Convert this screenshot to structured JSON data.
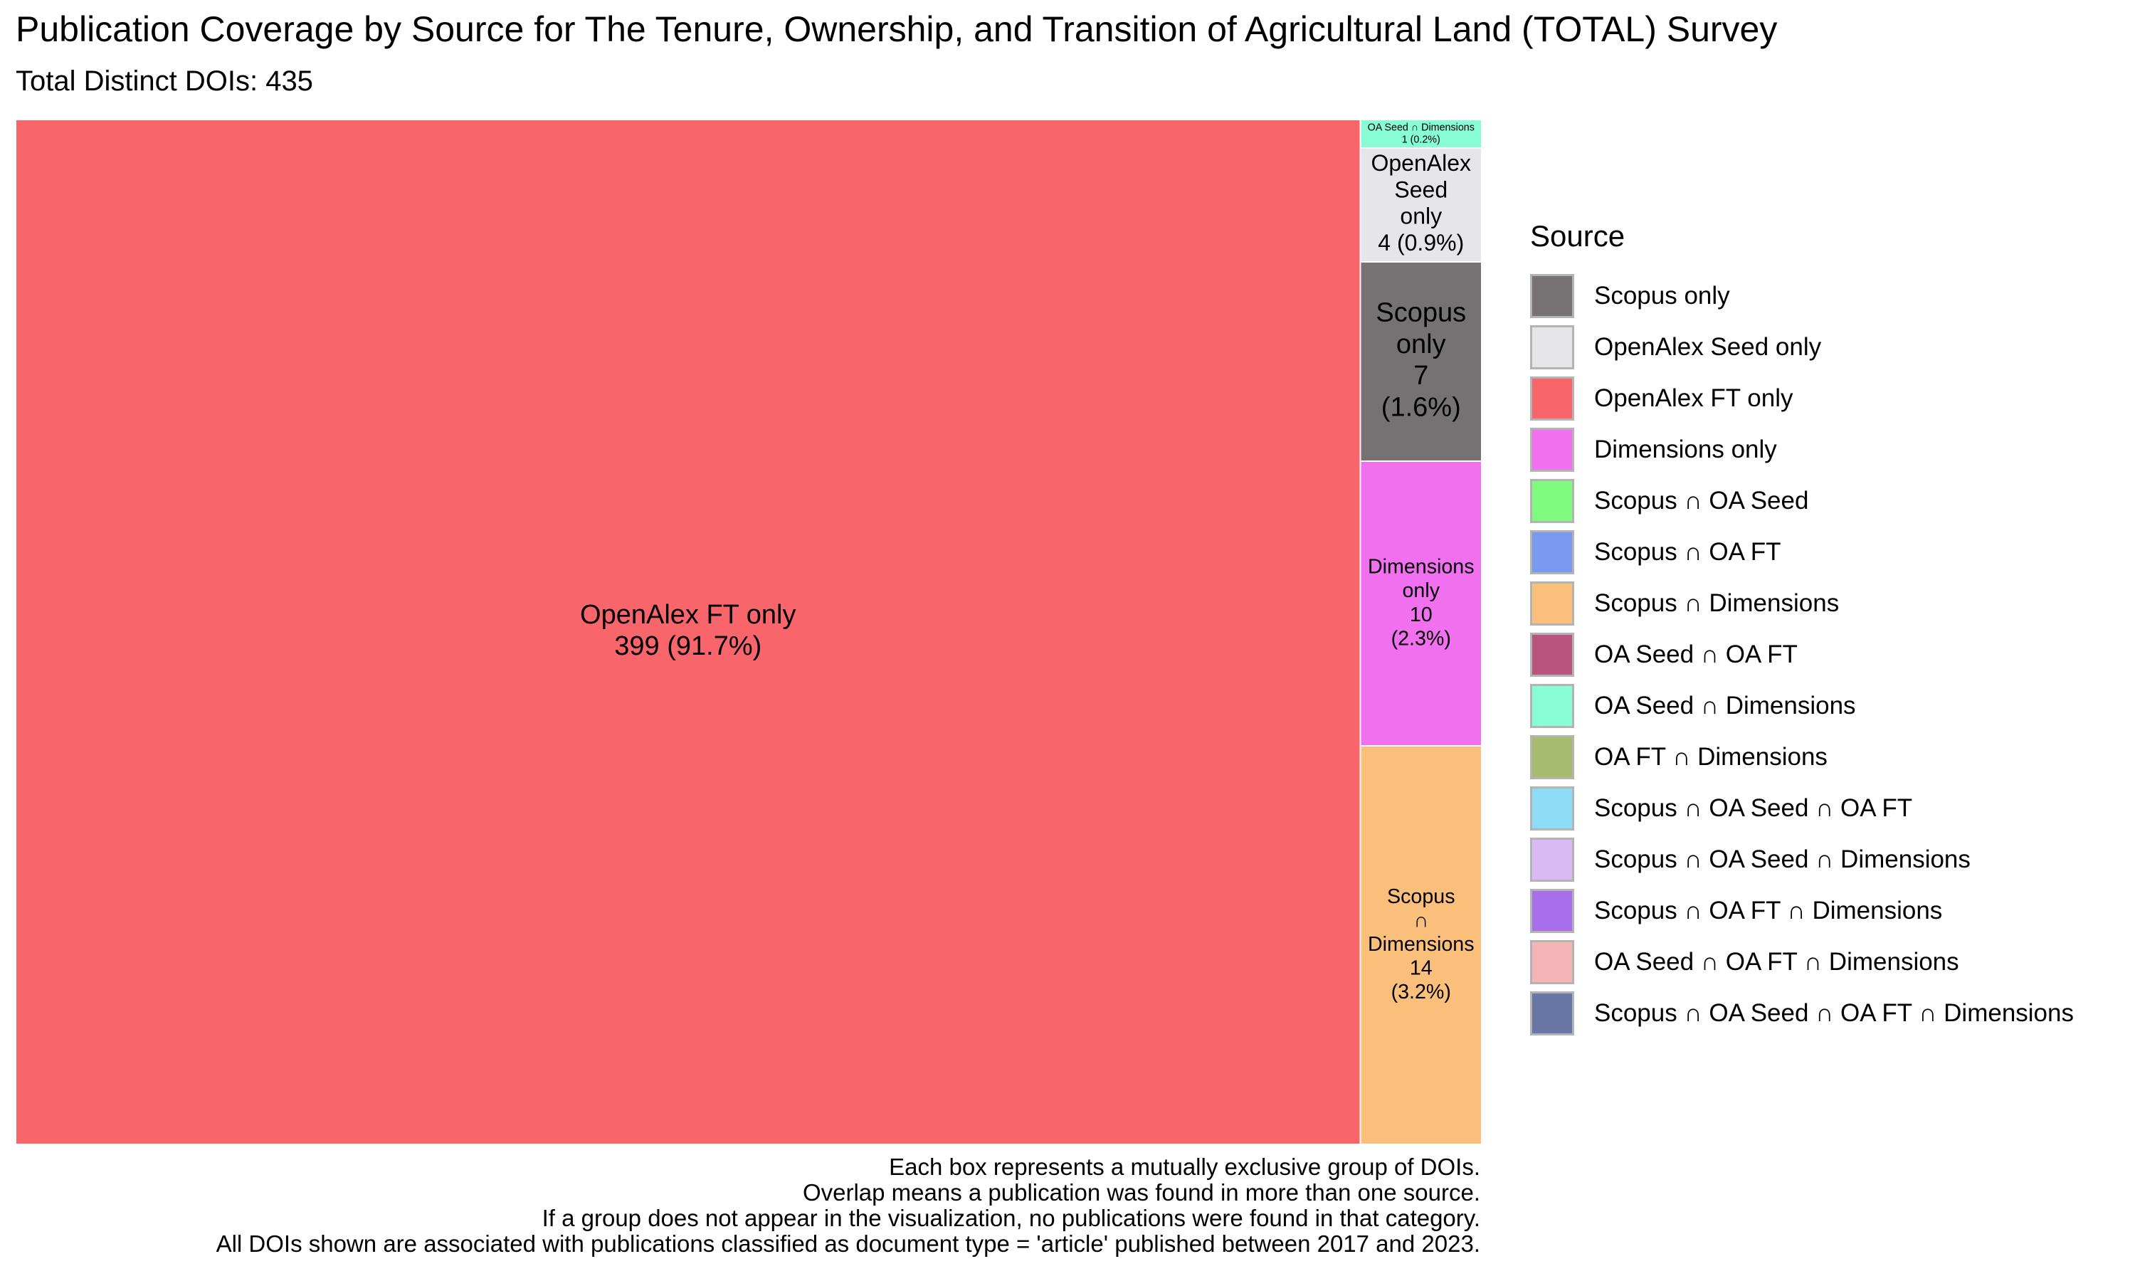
{
  "title": "Publication Coverage by Source for The Tenure, Ownership, and Transition of Agricultural Land (TOTAL) Survey",
  "subtitle": "Total Distinct DOIs: 435",
  "legend_title": "Source",
  "legend": [
    {
      "label": "Scopus only",
      "color": "#767274"
    },
    {
      "label": "OpenAlex Seed only",
      "color": "#e6e6e8"
    },
    {
      "label": "OpenAlex FT only",
      "color": "#f8666b"
    },
    {
      "label": "Dimensions only",
      "color": "#f070ef"
    },
    {
      "label": "Scopus ∩ OA Seed",
      "color": "#7efb7e"
    },
    {
      "label": "Scopus ∩ OA FT",
      "color": "#7a9af0"
    },
    {
      "label": "Scopus ∩ Dimensions",
      "color": "#fbbf7c"
    },
    {
      "label": "OA Seed ∩ OA FT",
      "color": "#b9547d"
    },
    {
      "label": "OA Seed ∩ Dimensions",
      "color": "#87fcd5"
    },
    {
      "label": "OA FT ∩ Dimensions",
      "color": "#a7ba6f"
    },
    {
      "label": "Scopus ∩ OA Seed ∩ OA FT",
      "color": "#8cdcf7"
    },
    {
      "label": "Scopus ∩ OA Seed ∩ Dimensions",
      "color": "#dbb9f2"
    },
    {
      "label": "Scopus ∩ OA FT ∩ Dimensions",
      "color": "#a96eea"
    },
    {
      "label": "OA Seed ∩ OA FT ∩ Dimensions",
      "color": "#f3b5b6"
    },
    {
      "label": "Scopus ∩ OA Seed ∩ OA FT ∩ Dimensions",
      "color": "#6877a5"
    }
  ],
  "caption": [
    "Each box represents a mutually exclusive group of DOIs.",
    "Overlap means a publication was found in more than one source.",
    "If a group does not appear in the visualization, no publications were found in that category.",
    "All DOIs shown are associated with publications classified as document type = 'article' published between 2017 and 2023."
  ],
  "chart_data": {
    "type": "treemap",
    "total": 435,
    "items": [
      {
        "name": "OpenAlex FT only",
        "value": 399,
        "percent": "91.7%",
        "color": "#f8666b",
        "label_lines": [
          "OpenAlex FT only",
          "399 (91.7%)"
        ]
      },
      {
        "name": "OA Seed ∩ Dimensions",
        "value": 1,
        "percent": "0.2%",
        "color": "#87fcd5",
        "label_lines": [
          "OA Seed ∩ Dimensions",
          "1 (0.2%)"
        ]
      },
      {
        "name": "OpenAlex Seed only",
        "value": 4,
        "percent": "0.9%",
        "color": "#e6e6e8",
        "label_lines": [
          "OpenAlex",
          "Seed",
          "only",
          "4 (0.9%)"
        ]
      },
      {
        "name": "Scopus only",
        "value": 7,
        "percent": "1.6%",
        "color": "#767274",
        "label_lines": [
          "Scopus",
          "only",
          "7",
          "(1.6%)"
        ]
      },
      {
        "name": "Dimensions only",
        "value": 10,
        "percent": "2.3%",
        "color": "#f070ef",
        "label_lines": [
          "Dimensions",
          "only",
          "10",
          "(2.3%)"
        ]
      },
      {
        "name": "Scopus ∩ Dimensions",
        "value": 14,
        "percent": "3.2%",
        "color": "#fbbf7c",
        "label_lines": [
          "Scopus",
          "∩",
          "Dimensions",
          "14",
          "(3.2%)"
        ]
      }
    ]
  }
}
